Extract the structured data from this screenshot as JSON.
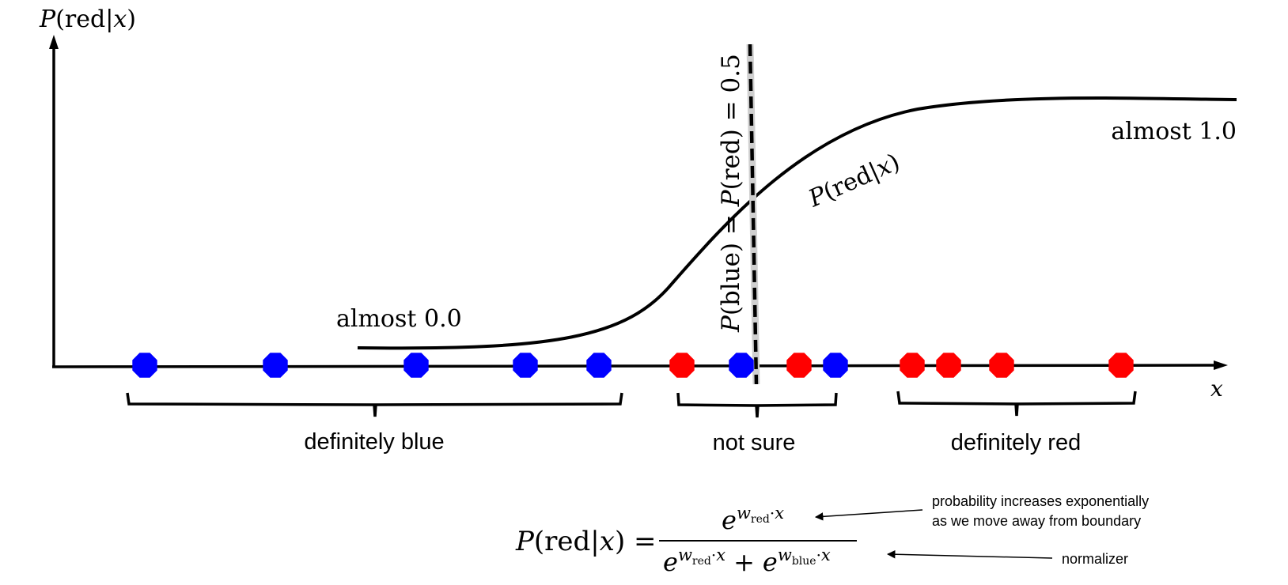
{
  "axes": {
    "y_label": {
      "P": "P",
      "rest": "(red|",
      "x": "x",
      "close": ")"
    },
    "x_label": "x"
  },
  "curve": {
    "low_label": "almost 0.0",
    "high_label": "almost 1.0",
    "label": {
      "P": "P",
      "rest": "(red|",
      "x": "x",
      "close": ")"
    }
  },
  "boundary": {
    "label": {
      "P1": "P",
      "b1": "(blue) = ",
      "P2": "P",
      "b2": "(red) = 0.5"
    }
  },
  "points": {
    "colors": {
      "blue": "#0000ff",
      "red": "#ff0000"
    },
    "sequence": [
      "blue",
      "blue",
      "blue",
      "blue",
      "blue",
      "red",
      "blue",
      "red",
      "blue",
      "red",
      "red",
      "red",
      "red"
    ]
  },
  "groups": [
    {
      "label": "definitely blue"
    },
    {
      "label": "not sure"
    },
    {
      "label": "definitely red"
    }
  ],
  "formula": {
    "lhs": {
      "P": "P",
      "rest": "(red|",
      "x": "x",
      "close": ") ="
    },
    "num": {
      "e": "e",
      "w": "w",
      "sub": "red",
      "dot": "·",
      "x": "x"
    },
    "den": {
      "e1": "e",
      "w1": "w",
      "sub1": "red",
      "dot1": "·",
      "x1": "x",
      "plus": "+",
      "e2": "e",
      "w2": "w",
      "sub2": "blue",
      "dot2": "·",
      "x2": "x"
    },
    "annotations": {
      "numerator_line1": "probability increases exponentially",
      "numerator_line2": "as we move away from boundary",
      "denominator": "normalizer"
    }
  }
}
